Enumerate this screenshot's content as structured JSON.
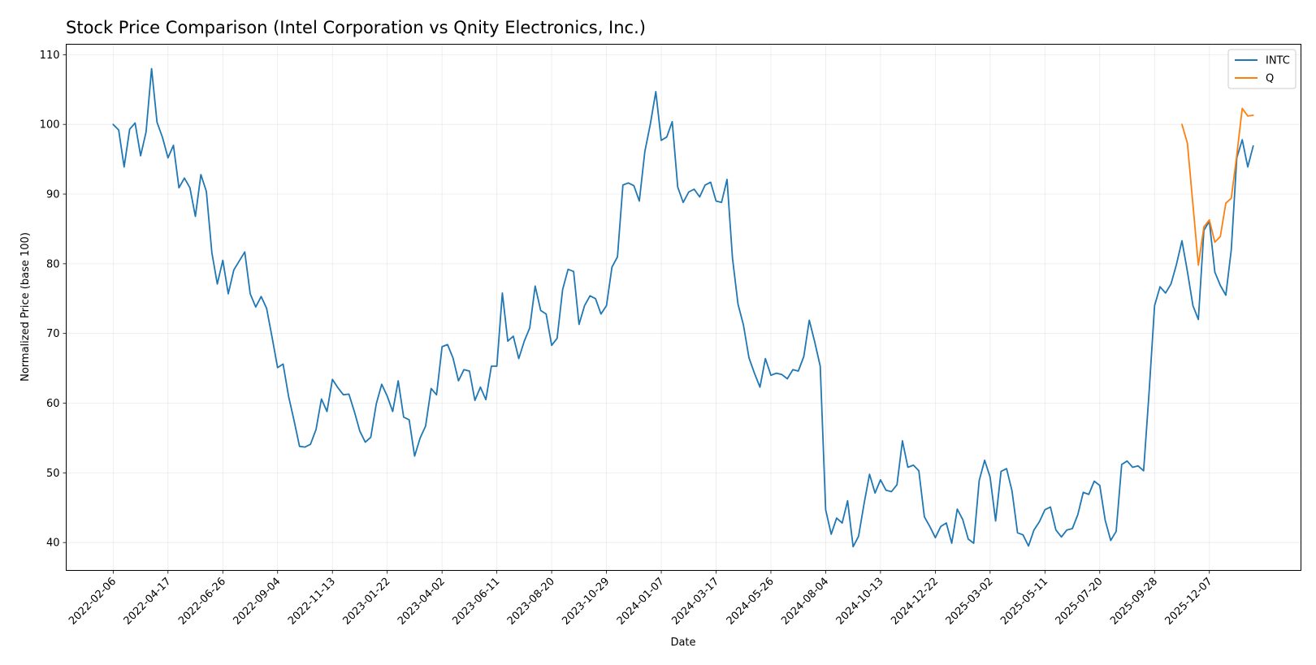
{
  "chart_data": {
    "type": "line",
    "title": "Stock Price Comparison (Intel Corporation vs Qnity Electronics, Inc.)",
    "xlabel": "Date",
    "ylabel": "Normalized Price (base 100)",
    "x_ticks": [
      "2022-02-06",
      "2022-04-17",
      "2022-06-26",
      "2022-09-04",
      "2022-11-13",
      "2023-01-22",
      "2023-04-02",
      "2023-06-11",
      "2023-08-20",
      "2023-10-29",
      "2024-01-07",
      "2024-03-17",
      "2024-05-26",
      "2024-08-04",
      "2024-10-13",
      "2024-12-22",
      "2025-03-02",
      "2025-05-11",
      "2025-07-20",
      "2025-09-28",
      "2025-12-07"
    ],
    "y_ticks": [
      40,
      50,
      60,
      70,
      80,
      90,
      100,
      110
    ],
    "xlim": [
      "2021-12-08",
      "2026-04-03"
    ],
    "ylim": [
      36,
      111.5
    ],
    "grid": true,
    "legend_position": "top-right",
    "series": [
      {
        "name": "INTC",
        "color": "#1f77b4",
        "start": "2022-02-06",
        "step_days": 7,
        "values": [
          100,
          99.2,
          93.9,
          99.3,
          100.2,
          95.5,
          98.9,
          108,
          100.3,
          98.1,
          95.2,
          97,
          90.9,
          92.3,
          90.9,
          86.8,
          92.8,
          90.4,
          81.6,
          77.1,
          80.5,
          75.7,
          79.1,
          80.4,
          81.7,
          75.7,
          73.8,
          75.3,
          73.6,
          69.4,
          65.1,
          65.6,
          61,
          57.5,
          53.8,
          53.7,
          54.1,
          56.2,
          60.6,
          58.8,
          63.4,
          62.2,
          61.2,
          61.3,
          58.8,
          56,
          54.4,
          55.1,
          59.9,
          62.7,
          61,
          58.8,
          63.2,
          58,
          57.6,
          52.4,
          55,
          56.7,
          62.1,
          61.2,
          68.1,
          68.4,
          66.5,
          63.2,
          64.8,
          64.6,
          60.4,
          62.3,
          60.5,
          65.3,
          65.3,
          75.8,
          68.9,
          69.6,
          66.4,
          68.9,
          70.8,
          76.8,
          73.3,
          72.8,
          68.3,
          69.3,
          76.3,
          79.2,
          78.9,
          71.3,
          74,
          75.4,
          75,
          72.8,
          74,
          79.5,
          81,
          91.3,
          91.6,
          91.2,
          89,
          96.1,
          100,
          104.7,
          97.7,
          98.2,
          100.4,
          91,
          88.8,
          90.3,
          90.7,
          89.6,
          91.3,
          91.7,
          89,
          88.8,
          92.1,
          80.8,
          74.2,
          71.2,
          66.5,
          64.3,
          62.3,
          66.4,
          64,
          64.3,
          64.1,
          63.5,
          64.8,
          64.6,
          66.7,
          71.9,
          68.8,
          65.3,
          44.7,
          41.2,
          43.5,
          42.8,
          46,
          39.4,
          40.9,
          45.6,
          49.8,
          47.1,
          49,
          47.5,
          47.3,
          48.3,
          54.6,
          50.8,
          51.1,
          50.3,
          43.7,
          42.3,
          40.7,
          42.3,
          42.8,
          39.9,
          44.8,
          43.3,
          40.5,
          39.9,
          48.9,
          51.8,
          49.4,
          43.1,
          50.2,
          50.6,
          47.4,
          41.4,
          41.1,
          39.5,
          41.8,
          43,
          44.7,
          45.1,
          41.8,
          40.8,
          41.8,
          42,
          44,
          47.2,
          46.9,
          48.8,
          48.2,
          43.2,
          40.3,
          41.6,
          51.2,
          51.7,
          50.8,
          51,
          50.3,
          61.5,
          74,
          76.7,
          75.8,
          77.1,
          79.9,
          83.3,
          78.9,
          74,
          72,
          84.8,
          86.1,
          78.8,
          76.9,
          75.5,
          82,
          95.2,
          97.8,
          93.9,
          96.9
        ]
      },
      {
        "name": "Q",
        "color": "#ff7f0e",
        "start": "2025-11-02",
        "step_days": 7,
        "values": [
          100,
          97.3,
          88.5,
          79.8,
          85.3,
          86.3,
          83.1,
          83.9,
          88.7,
          89.4,
          95.6,
          102.3,
          101.2,
          101.3
        ]
      }
    ]
  }
}
